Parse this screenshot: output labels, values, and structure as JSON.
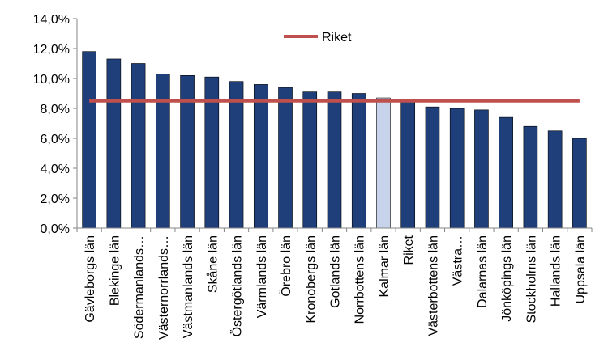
{
  "chart_data": {
    "type": "bar",
    "categories": [
      "Gävleborgs län",
      "Blekinge län",
      "Södermanlands…",
      "Västernorrlands…",
      "Västmanlands län",
      "Skåne län",
      "Östergötlands län",
      "Värmlands län",
      "Örebro län",
      "Kronobergs län",
      "Gotlands län",
      "Norrbottens län",
      "Kalmar län",
      "Riket",
      "Västerbottens län",
      "Västra…",
      "Dalarnas län",
      "Jönköpings län",
      "Stockholms län",
      "Hallands län",
      "Uppsala län"
    ],
    "values": [
      11.8,
      11.3,
      11.0,
      10.3,
      10.2,
      10.1,
      9.8,
      9.6,
      9.4,
      9.1,
      9.1,
      9.0,
      8.7,
      8.6,
      8.1,
      8.0,
      7.9,
      7.4,
      6.8,
      6.5,
      6.0
    ],
    "highlight_category": "Kalmar län",
    "reference_line": {
      "name": "Riket",
      "value": 8.5
    },
    "ylim": [
      0,
      14
    ],
    "yticks": [
      "0,0%",
      "2,0%",
      "4,0%",
      "6,0%",
      "8,0%",
      "10,0%",
      "12,0%",
      "14,0%"
    ],
    "grid": false,
    "legend_position": "top-left",
    "colors": {
      "bar": "#1f3f7a",
      "bar_highlight": "#c7d3ea",
      "bar_stroke": "#000000",
      "reference_line": "#c0504d",
      "axis": "#868686"
    }
  }
}
